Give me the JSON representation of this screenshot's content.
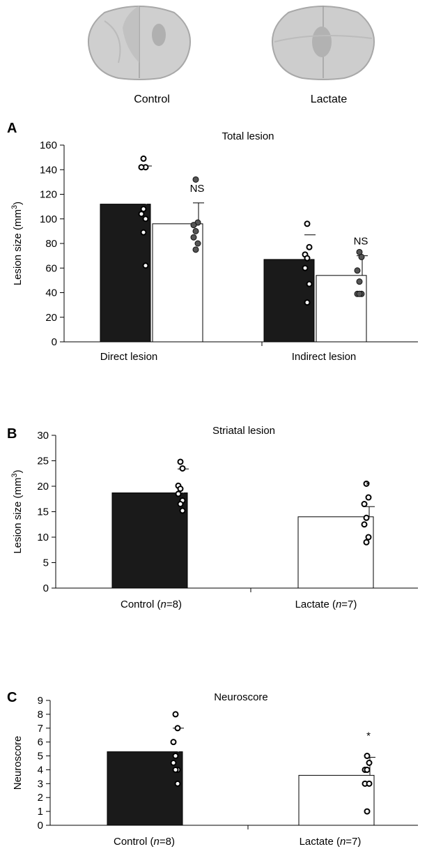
{
  "images": {
    "control_caption": "Control",
    "lactate_caption": "Lactate"
  },
  "colors": {
    "control_bar": "#1a1a1a",
    "lactate_bar": "#ffffff",
    "dot_dark": "#555555",
    "axis": "#000000"
  },
  "chart_data": [
    {
      "panel": "A",
      "type": "bar",
      "title": "Total lesion",
      "ylabel_prefix": "Lesion size (mm",
      "ylabel_sup": "3",
      "ylabel_suffix": ")",
      "ylim": [
        0,
        160
      ],
      "yticks": [
        0,
        20,
        40,
        60,
        80,
        100,
        120,
        140,
        160
      ],
      "categories": [
        "Direct lesion",
        "Indirect lesion"
      ],
      "series": [
        {
          "fill": "black",
          "values": [
            112,
            67
          ],
          "err": [
            31,
            20
          ],
          "points": [
            [
              149,
              142,
              142,
              108,
              104,
              100,
              89,
              62
            ],
            [
              96,
              77,
              71,
              68,
              60,
              47,
              32
            ]
          ]
        },
        {
          "fill": "white",
          "values": [
            96,
            54
          ],
          "err": [
            17,
            16
          ],
          "points": [
            [
              132,
              97,
              95,
              90,
              85,
              80,
              75
            ],
            [
              73,
              69,
              58,
              49,
              39,
              39,
              39
            ]
          ]
        }
      ],
      "annotations": [
        "NS",
        "NS"
      ],
      "legend": "none"
    },
    {
      "panel": "B",
      "type": "bar",
      "title": "Striatal lesion",
      "ylabel_prefix": "Lesion size (mm",
      "ylabel_sup": "3",
      "ylabel_suffix": ")",
      "ylim": [
        0,
        30
      ],
      "yticks": [
        0,
        5,
        10,
        15,
        20,
        25,
        30
      ],
      "categories_parts": [
        {
          "pre": "Control (",
          "italic": "n",
          "post": "=8)"
        },
        {
          "pre": "Lactate (",
          "italic": "n",
          "post": "=7)"
        }
      ],
      "values": [
        18.7,
        14.0
      ],
      "err": [
        4.7,
        2.0
      ],
      "points": [
        [
          24.8,
          23.5,
          20.1,
          19.5,
          18.5,
          17.2,
          16.5,
          15.2
        ],
        [
          20.5,
          17.8,
          16.5,
          13.8,
          12.5,
          10.0,
          9.0
        ]
      ],
      "annotations": [
        "",
        "*"
      ],
      "legend": "none"
    },
    {
      "panel": "C",
      "type": "bar",
      "title": "Neuroscore",
      "ylabel": "Neuroscore",
      "ylim": [
        0,
        9
      ],
      "yticks": [
        0,
        1,
        2,
        3,
        4,
        5,
        6,
        7,
        8,
        9
      ],
      "categories_parts": [
        {
          "pre": "Control (",
          "italic": "n",
          "post": "=8)"
        },
        {
          "pre": "Lactate (",
          "italic": "n",
          "post": "=7)"
        }
      ],
      "values": [
        5.3,
        3.6
      ],
      "err": [
        1.7,
        1.3
      ],
      "points": [
        [
          8,
          7,
          6,
          5,
          4.5,
          4,
          4,
          3
        ],
        [
          5,
          4.5,
          4,
          4,
          3,
          3,
          1
        ]
      ],
      "annotations": [
        "",
        "*"
      ],
      "legend": "none"
    }
  ]
}
